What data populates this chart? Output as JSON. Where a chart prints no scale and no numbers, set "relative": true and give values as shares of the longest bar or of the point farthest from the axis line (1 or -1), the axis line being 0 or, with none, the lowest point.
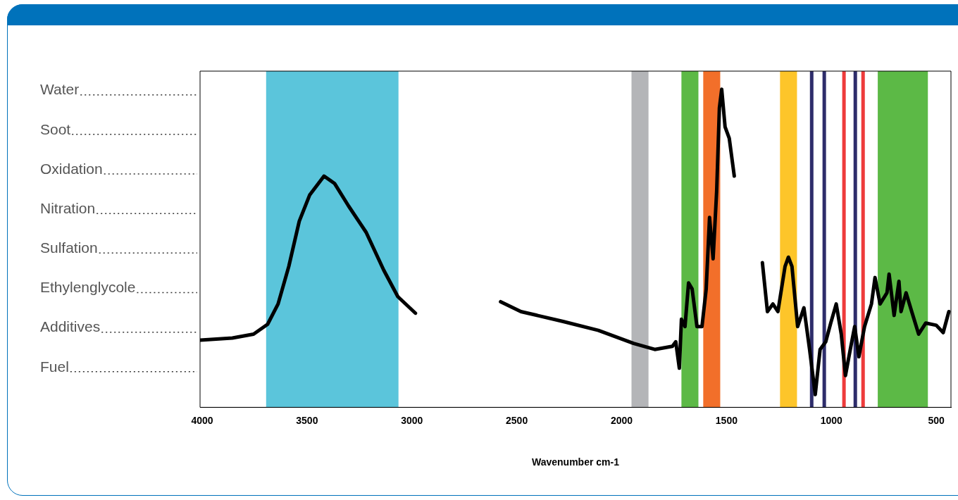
{
  "chart_data": {
    "type": "line",
    "relative": true,
    "xlabel": "Wavenumber cm-1",
    "xlim": [
      4010,
      430
    ],
    "xticks": [
      4000,
      3500,
      3000,
      2500,
      2000,
      1500,
      1000,
      500
    ],
    "grid": false,
    "legend": false,
    "series": [
      {
        "color": "#000000",
        "x": [
          4010,
          3856,
          3755,
          3688,
          3638,
          3587,
          3537,
          3487,
          3419,
          3369,
          3302,
          3218,
          3134,
          3067,
          2983,
          2800,
          2577,
          2480,
          2279,
          2111,
          1943,
          1842,
          1758,
          1742,
          1725,
          1715,
          1698,
          1681,
          1664,
          1641,
          1617,
          1597,
          1581,
          1564,
          1547,
          1534,
          1523,
          1507,
          1487,
          1463,
          1400,
          1329,
          1305,
          1279,
          1255,
          1221,
          1205,
          1188,
          1161,
          1131,
          1104,
          1077,
          1054,
          1027,
          1003,
          977,
          953,
          933,
          910,
          889,
          869,
          842,
          809,
          792,
          768,
          735,
          725,
          701,
          678,
          668,
          644,
          617,
          584,
          550,
          500,
          467,
          440
        ],
        "values": [
          0.211,
          0.218,
          0.23,
          0.261,
          0.325,
          0.443,
          0.585,
          0.668,
          0.727,
          0.704,
          0.633,
          0.55,
          0.431,
          0.348,
          0.296,
          null,
          0.332,
          0.301,
          0.27,
          0.242,
          0.201,
          0.182,
          0.192,
          0.206,
          0.123,
          0.277,
          0.254,
          0.391,
          0.372,
          0.254,
          0.254,
          0.372,
          0.597,
          0.467,
          0.68,
          0.941,
          1.0,
          0.882,
          0.846,
          0.727,
          null,
          0.455,
          0.301,
          0.325,
          0.301,
          0.443,
          0.472,
          0.443,
          0.254,
          0.313,
          0.182,
          0.04,
          0.182,
          0.206,
          0.265,
          0.325,
          0.23,
          0.1,
          0.182,
          0.254,
          0.159,
          0.254,
          0.325,
          0.408,
          0.325,
          0.36,
          0.419,
          0.289,
          0.396,
          0.301,
          0.36,
          0.301,
          0.23,
          0.265,
          0.258,
          0.235,
          0.301
        ]
      }
    ],
    "bands": [
      {
        "axis": "x",
        "from": 3695,
        "to": 3064,
        "color": "#5bc5db"
      },
      {
        "axis": "x",
        "from": 1953,
        "to": 1872,
        "color": "#b4b5b8"
      },
      {
        "axis": "x",
        "from": 1715,
        "to": 1634,
        "color": "#5cb946"
      },
      {
        "axis": "x",
        "from": 1611,
        "to": 1530,
        "color": "#f26f2a"
      },
      {
        "axis": "x",
        "from": 1245,
        "to": 1164,
        "color": "#fdc52a"
      },
      {
        "axis": "x",
        "from": 779,
        "to": 540,
        "color": "#5cb946"
      }
    ],
    "ref_lines": [
      {
        "axis": "x",
        "value": 1094,
        "color": "#2e2d6b"
      },
      {
        "axis": "x",
        "value": 1034,
        "color": "#2e2d6b"
      },
      {
        "axis": "x",
        "value": 940,
        "color": "#ee3b3b"
      },
      {
        "axis": "x",
        "value": 886,
        "color": "#2e2d6b"
      },
      {
        "axis": "x",
        "value": 849,
        "color": "#ee3b3b"
      }
    ],
    "annotations": [
      "Water",
      "Soot",
      "Oxidation",
      "Nitration",
      "Sulfation",
      "Ethylenglycole",
      "Additives",
      "Fuel"
    ]
  }
}
